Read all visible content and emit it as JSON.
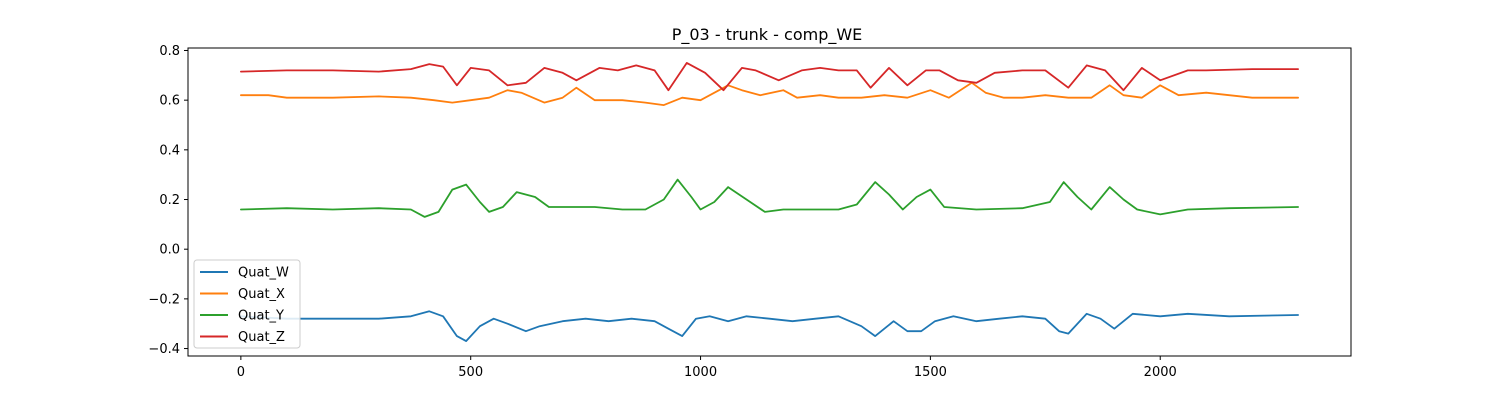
{
  "chart_data": {
    "type": "line",
    "title": "P_03 - trunk - comp_WE",
    "xlabel": "",
    "ylabel": "",
    "xlim": [
      -115,
      2415
    ],
    "ylim": [
      -0.43,
      0.81
    ],
    "xticks": [
      0,
      500,
      1000,
      1500,
      2000
    ],
    "xtick_labels": [
      "0",
      "500",
      "1000",
      "1500",
      "2000"
    ],
    "yticks": [
      -0.4,
      -0.2,
      0.0,
      0.2,
      0.4,
      0.6,
      0.8
    ],
    "ytick_labels": [
      "−0.4",
      "−0.2",
      "0.0",
      "0.2",
      "0.4",
      "0.6",
      "0.8"
    ],
    "grid": false,
    "legend_position": "lower-left",
    "series": [
      {
        "name": "Quat_W",
        "color": "#1f77b4",
        "points": [
          [
            0,
            -0.27
          ],
          [
            100,
            -0.28
          ],
          [
            200,
            -0.28
          ],
          [
            300,
            -0.28
          ],
          [
            370,
            -0.27
          ],
          [
            410,
            -0.25
          ],
          [
            440,
            -0.27
          ],
          [
            470,
            -0.35
          ],
          [
            490,
            -0.37
          ],
          [
            520,
            -0.31
          ],
          [
            550,
            -0.28
          ],
          [
            580,
            -0.3
          ],
          [
            620,
            -0.33
          ],
          [
            650,
            -0.31
          ],
          [
            700,
            -0.29
          ],
          [
            750,
            -0.28
          ],
          [
            800,
            -0.29
          ],
          [
            850,
            -0.28
          ],
          [
            900,
            -0.29
          ],
          [
            930,
            -0.32
          ],
          [
            960,
            -0.35
          ],
          [
            990,
            -0.28
          ],
          [
            1020,
            -0.27
          ],
          [
            1060,
            -0.29
          ],
          [
            1100,
            -0.27
          ],
          [
            1150,
            -0.28
          ],
          [
            1200,
            -0.29
          ],
          [
            1250,
            -0.28
          ],
          [
            1300,
            -0.27
          ],
          [
            1350,
            -0.31
          ],
          [
            1380,
            -0.35
          ],
          [
            1420,
            -0.29
          ],
          [
            1450,
            -0.33
          ],
          [
            1480,
            -0.33
          ],
          [
            1510,
            -0.29
          ],
          [
            1550,
            -0.27
          ],
          [
            1600,
            -0.29
          ],
          [
            1650,
            -0.28
          ],
          [
            1700,
            -0.27
          ],
          [
            1750,
            -0.28
          ],
          [
            1780,
            -0.33
          ],
          [
            1800,
            -0.34
          ],
          [
            1840,
            -0.26
          ],
          [
            1870,
            -0.28
          ],
          [
            1900,
            -0.32
          ],
          [
            1940,
            -0.26
          ],
          [
            2000,
            -0.27
          ],
          [
            2060,
            -0.26
          ],
          [
            2150,
            -0.27
          ],
          [
            2300,
            -0.265
          ]
        ]
      },
      {
        "name": "Quat_X",
        "color": "#ff7f0e",
        "points": [
          [
            0,
            0.62
          ],
          [
            60,
            0.62
          ],
          [
            100,
            0.61
          ],
          [
            200,
            0.61
          ],
          [
            300,
            0.615
          ],
          [
            370,
            0.61
          ],
          [
            420,
            0.6
          ],
          [
            460,
            0.59
          ],
          [
            500,
            0.6
          ],
          [
            540,
            0.61
          ],
          [
            580,
            0.64
          ],
          [
            610,
            0.63
          ],
          [
            660,
            0.59
          ],
          [
            700,
            0.61
          ],
          [
            730,
            0.65
          ],
          [
            770,
            0.6
          ],
          [
            830,
            0.6
          ],
          [
            880,
            0.59
          ],
          [
            920,
            0.58
          ],
          [
            960,
            0.61
          ],
          [
            1000,
            0.6
          ],
          [
            1060,
            0.66
          ],
          [
            1090,
            0.64
          ],
          [
            1130,
            0.62
          ],
          [
            1180,
            0.64
          ],
          [
            1210,
            0.61
          ],
          [
            1260,
            0.62
          ],
          [
            1300,
            0.61
          ],
          [
            1350,
            0.61
          ],
          [
            1400,
            0.62
          ],
          [
            1450,
            0.61
          ],
          [
            1500,
            0.64
          ],
          [
            1540,
            0.61
          ],
          [
            1590,
            0.67
          ],
          [
            1620,
            0.63
          ],
          [
            1660,
            0.61
          ],
          [
            1700,
            0.61
          ],
          [
            1750,
            0.62
          ],
          [
            1800,
            0.61
          ],
          [
            1850,
            0.61
          ],
          [
            1890,
            0.66
          ],
          [
            1920,
            0.62
          ],
          [
            1960,
            0.61
          ],
          [
            2000,
            0.66
          ],
          [
            2040,
            0.62
          ],
          [
            2100,
            0.63
          ],
          [
            2200,
            0.61
          ],
          [
            2300,
            0.61
          ]
        ]
      },
      {
        "name": "Quat_Y",
        "color": "#2ca02c",
        "points": [
          [
            0,
            0.16
          ],
          [
            100,
            0.165
          ],
          [
            200,
            0.16
          ],
          [
            300,
            0.165
          ],
          [
            370,
            0.16
          ],
          [
            400,
            0.13
          ],
          [
            430,
            0.15
          ],
          [
            460,
            0.24
          ],
          [
            490,
            0.26
          ],
          [
            520,
            0.19
          ],
          [
            540,
            0.15
          ],
          [
            570,
            0.17
          ],
          [
            600,
            0.23
          ],
          [
            640,
            0.21
          ],
          [
            670,
            0.17
          ],
          [
            720,
            0.17
          ],
          [
            770,
            0.17
          ],
          [
            830,
            0.16
          ],
          [
            880,
            0.16
          ],
          [
            920,
            0.2
          ],
          [
            950,
            0.28
          ],
          [
            980,
            0.21
          ],
          [
            1000,
            0.16
          ],
          [
            1030,
            0.19
          ],
          [
            1060,
            0.25
          ],
          [
            1100,
            0.2
          ],
          [
            1140,
            0.15
          ],
          [
            1180,
            0.16
          ],
          [
            1250,
            0.16
          ],
          [
            1300,
            0.16
          ],
          [
            1340,
            0.18
          ],
          [
            1380,
            0.27
          ],
          [
            1410,
            0.22
          ],
          [
            1440,
            0.16
          ],
          [
            1470,
            0.21
          ],
          [
            1500,
            0.24
          ],
          [
            1530,
            0.17
          ],
          [
            1600,
            0.16
          ],
          [
            1700,
            0.165
          ],
          [
            1760,
            0.19
          ],
          [
            1790,
            0.27
          ],
          [
            1820,
            0.21
          ],
          [
            1850,
            0.16
          ],
          [
            1890,
            0.25
          ],
          [
            1920,
            0.2
          ],
          [
            1950,
            0.16
          ],
          [
            2000,
            0.14
          ],
          [
            2060,
            0.16
          ],
          [
            2150,
            0.165
          ],
          [
            2300,
            0.17
          ]
        ]
      },
      {
        "name": "Quat_Z",
        "color": "#d62728",
        "points": [
          [
            0,
            0.715
          ],
          [
            100,
            0.72
          ],
          [
            200,
            0.72
          ],
          [
            300,
            0.715
          ],
          [
            370,
            0.725
          ],
          [
            410,
            0.745
          ],
          [
            440,
            0.735
          ],
          [
            470,
            0.66
          ],
          [
            500,
            0.73
          ],
          [
            540,
            0.72
          ],
          [
            580,
            0.66
          ],
          [
            620,
            0.67
          ],
          [
            660,
            0.73
          ],
          [
            700,
            0.71
          ],
          [
            730,
            0.68
          ],
          [
            780,
            0.73
          ],
          [
            820,
            0.72
          ],
          [
            860,
            0.74
          ],
          [
            900,
            0.72
          ],
          [
            930,
            0.64
          ],
          [
            970,
            0.75
          ],
          [
            1010,
            0.71
          ],
          [
            1050,
            0.64
          ],
          [
            1090,
            0.73
          ],
          [
            1120,
            0.72
          ],
          [
            1170,
            0.68
          ],
          [
            1220,
            0.72
          ],
          [
            1260,
            0.73
          ],
          [
            1300,
            0.72
          ],
          [
            1340,
            0.72
          ],
          [
            1370,
            0.65
          ],
          [
            1410,
            0.73
          ],
          [
            1450,
            0.66
          ],
          [
            1490,
            0.72
          ],
          [
            1520,
            0.72
          ],
          [
            1560,
            0.68
          ],
          [
            1600,
            0.67
          ],
          [
            1640,
            0.71
          ],
          [
            1700,
            0.72
          ],
          [
            1750,
            0.72
          ],
          [
            1800,
            0.65
          ],
          [
            1840,
            0.74
          ],
          [
            1880,
            0.72
          ],
          [
            1920,
            0.64
          ],
          [
            1960,
            0.73
          ],
          [
            2000,
            0.68
          ],
          [
            2060,
            0.72
          ],
          [
            2100,
            0.72
          ],
          [
            2200,
            0.725
          ],
          [
            2300,
            0.725
          ]
        ]
      }
    ]
  }
}
